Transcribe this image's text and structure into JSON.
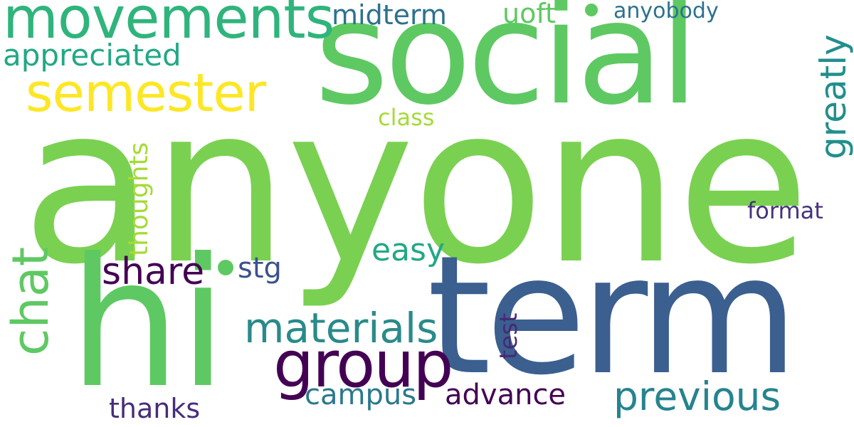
{
  "words": {
    "anyone": "anyone",
    "social": "social",
    "term": "term",
    "hi": "hi",
    "movements": "movements",
    "semester": "semester",
    "group": "group",
    "chat": "chat",
    "materials": "materials",
    "previous": "previous",
    "share": "share",
    "greatly": "greatly",
    "appreciated": "appreciated",
    "midterm": "midterm",
    "uoft": "uoft",
    "anyobody": "anyobody",
    "thoughts": "thoughts",
    "class": "class",
    "format": "format",
    "easy": "easy",
    "stg": "stg",
    "test": "test",
    "campus": "campus",
    "advance": "advance",
    "thanks": "thanks"
  },
  "colors": {
    "anyone": "#7ad151",
    "social": "#5ec962",
    "term": "#3b5f8f",
    "hi": "#5ec962",
    "movements": "#2fb47c",
    "semester": "#fde725",
    "group": "#440154",
    "chat": "#5ec962",
    "materials": "#2a8a8a",
    "previous": "#25848e",
    "share": "#440154",
    "greatly": "#218f8d",
    "appreciated": "#22a884",
    "midterm": "#2c728e",
    "uoft": "#5ec962",
    "anyobody": "#2c728e",
    "thoughts": "#a5db36",
    "class": "#a5db36",
    "format": "#46327e",
    "easy": "#22a884",
    "stg": "#3b528b",
    "test": "#482878",
    "campus": "#2a788e",
    "advance": "#440154",
    "thanks": "#472d7b",
    "dot": "#5ec962"
  }
}
